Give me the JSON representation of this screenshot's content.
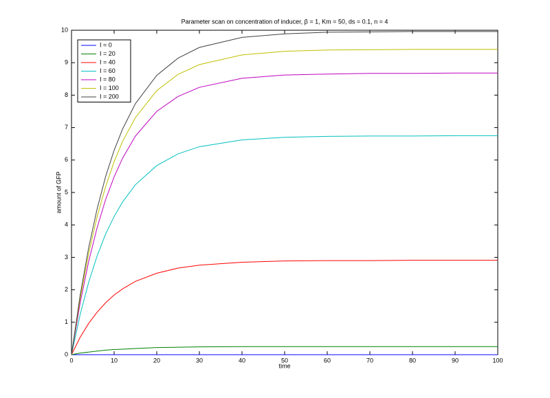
{
  "chart_data": {
    "type": "line",
    "title": "Parameter scan on concentration of inducer, β = 1, Km = 50, ds = 0.1, n = 4",
    "x_label": "time",
    "y_label": "amount of GFP",
    "x": [
      0,
      2,
      4,
      6,
      8,
      10,
      12,
      15,
      20,
      25,
      30,
      40,
      50,
      60,
      70,
      80,
      90,
      100
    ],
    "series": [
      {
        "name": "I = 0",
        "color": "#0000ff",
        "values": [
          0,
          0,
          0,
          0,
          0,
          0,
          0,
          0,
          0,
          0,
          0,
          0,
          0,
          0,
          0,
          0,
          0,
          0
        ]
      },
      {
        "name": "I = 20",
        "color": "#008000",
        "values": [
          0,
          0.05,
          0.08,
          0.11,
          0.14,
          0.16,
          0.17,
          0.19,
          0.22,
          0.23,
          0.24,
          0.25,
          0.25,
          0.25,
          0.25,
          0.25,
          0.25,
          0.25
        ]
      },
      {
        "name": "I = 40",
        "color": "#ff0000",
        "values": [
          0,
          0.53,
          0.96,
          1.31,
          1.6,
          1.84,
          2.03,
          2.26,
          2.51,
          2.67,
          2.76,
          2.85,
          2.89,
          2.9,
          2.9,
          2.91,
          2.91,
          2.91
        ]
      },
      {
        "name": "I = 60",
        "color": "#00bfbf",
        "values": [
          0,
          1.22,
          2.22,
          3.04,
          3.72,
          4.26,
          4.71,
          5.24,
          5.83,
          6.19,
          6.41,
          6.62,
          6.7,
          6.73,
          6.74,
          6.74,
          6.75,
          6.75
        ]
      },
      {
        "name": "I = 80",
        "color": "#bf00bf",
        "values": [
          0,
          1.57,
          2.86,
          3.91,
          4.78,
          5.48,
          6.06,
          6.74,
          7.5,
          7.96,
          8.24,
          8.52,
          8.62,
          8.65,
          8.67,
          8.67,
          8.68,
          8.68
        ]
      },
      {
        "name": "I = 100",
        "color": "#bfbf00",
        "values": [
          0,
          1.71,
          3.1,
          4.25,
          5.18,
          5.95,
          6.58,
          7.31,
          8.14,
          8.64,
          8.94,
          9.24,
          9.35,
          9.39,
          9.4,
          9.41,
          9.41,
          9.41
        ]
      },
      {
        "name": "I = 200",
        "color": "#404040",
        "values": [
          0,
          1.81,
          3.28,
          4.49,
          5.49,
          6.3,
          6.96,
          7.74,
          8.61,
          9.14,
          9.47,
          9.78,
          9.89,
          9.94,
          9.95,
          9.96,
          9.96,
          9.96
        ]
      }
    ],
    "xlim": [
      0,
      100
    ],
    "xticks": [
      0,
      10,
      20,
      30,
      40,
      50,
      60,
      70,
      80,
      90,
      100
    ],
    "ylim": [
      0,
      10
    ],
    "yticks": [
      0,
      1,
      2,
      3,
      4,
      5,
      6,
      7,
      8,
      9,
      10
    ],
    "grid": false,
    "legend": "upper-left"
  }
}
